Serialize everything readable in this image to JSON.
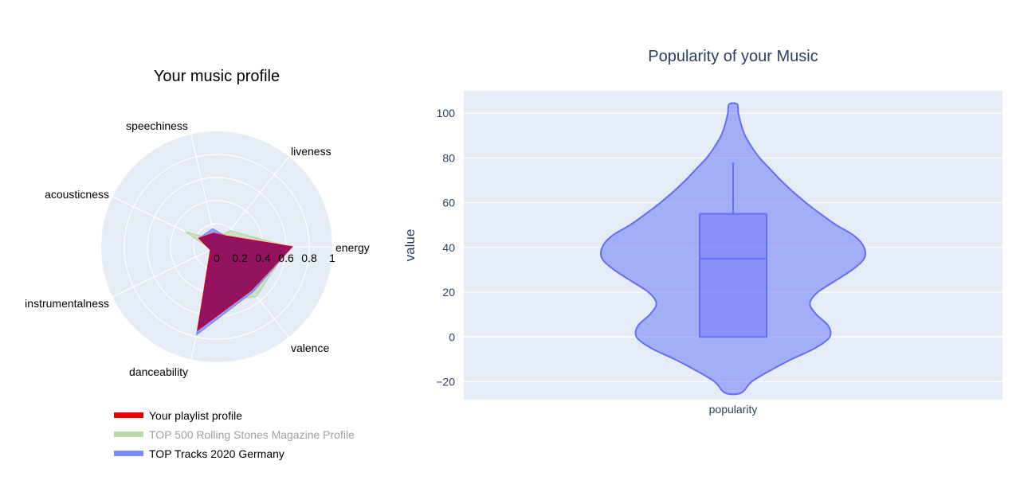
{
  "colors": {
    "playlist": "#ee0000",
    "rolling_stones": "#b8d8a8",
    "germany": "#7b8cff",
    "overlap": "#8b0a5e",
    "polar_bg": "#e5ecf6",
    "violin": "#636efa",
    "plot_bg": "#e5ecf6",
    "title_text": "#2a3f5f"
  },
  "chart_data": [
    {
      "type": "radar",
      "title": "Your music profile",
      "axes": [
        "energy",
        "liveness",
        "speechiness",
        "acousticness",
        "instrumentalness",
        "danceability",
        "valence"
      ],
      "radial_ticks": [
        "0",
        "0.2",
        "0.4",
        "0.6",
        "0.8",
        "1"
      ],
      "radial_range": [
        0,
        1
      ],
      "series": [
        {
          "name": "Your playlist profile",
          "values": [
            0.65,
            0.12,
            0.12,
            0.17,
            0.06,
            0.74,
            0.48
          ],
          "color": "#ee0000",
          "opacity": 1.0,
          "legend_muted": false
        },
        {
          "name": "TOP 500 Rolling Stones Magazine Profile",
          "values": [
            0.62,
            0.18,
            0.06,
            0.3,
            0.05,
            0.5,
            0.55
          ],
          "color": "#b8d8a8",
          "opacity": 0.6,
          "legend_muted": true
        },
        {
          "name": "TOP Tracks 2020 Germany",
          "values": [
            0.65,
            0.12,
            0.16,
            0.17,
            0.05,
            0.78,
            0.5
          ],
          "color": "#7b8cff",
          "opacity": 0.8,
          "legend_muted": false
        }
      ],
      "overlap_color": "#8b0a5e",
      "legend_position": "bottom-left"
    },
    {
      "type": "violin",
      "title": "Popularity of your Music",
      "ylabel": "value",
      "xlabel": "popularity",
      "ylim": [
        -28,
        110
      ],
      "y_ticks": [
        100,
        80,
        60,
        40,
        20,
        0,
        -20
      ],
      "y_tick_labels": [
        "100",
        "80",
        "60",
        "40",
        "20",
        "0",
        "−20"
      ],
      "grid": true,
      "box": {
        "q1": 0,
        "median": 35,
        "q3": 55,
        "whisker_low": 0,
        "whisker_high": 78
      },
      "violin_range": [
        -25,
        104
      ],
      "density": [
        [
          -25,
          0.06
        ],
        [
          -20,
          0.14
        ],
        [
          -15,
          0.28
        ],
        [
          -10,
          0.44
        ],
        [
          -5,
          0.62
        ],
        [
          0,
          0.73
        ],
        [
          5,
          0.72
        ],
        [
          10,
          0.63
        ],
        [
          15,
          0.58
        ],
        [
          20,
          0.64
        ],
        [
          25,
          0.77
        ],
        [
          30,
          0.9
        ],
        [
          35,
          0.99
        ],
        [
          40,
          0.99
        ],
        [
          45,
          0.92
        ],
        [
          50,
          0.78
        ],
        [
          55,
          0.66
        ],
        [
          60,
          0.55
        ],
        [
          65,
          0.45
        ],
        [
          70,
          0.36
        ],
        [
          75,
          0.28
        ],
        [
          80,
          0.2
        ],
        [
          85,
          0.14
        ],
        [
          90,
          0.09
        ],
        [
          95,
          0.06
        ],
        [
          100,
          0.04
        ],
        [
          104,
          0.03
        ]
      ]
    }
  ]
}
